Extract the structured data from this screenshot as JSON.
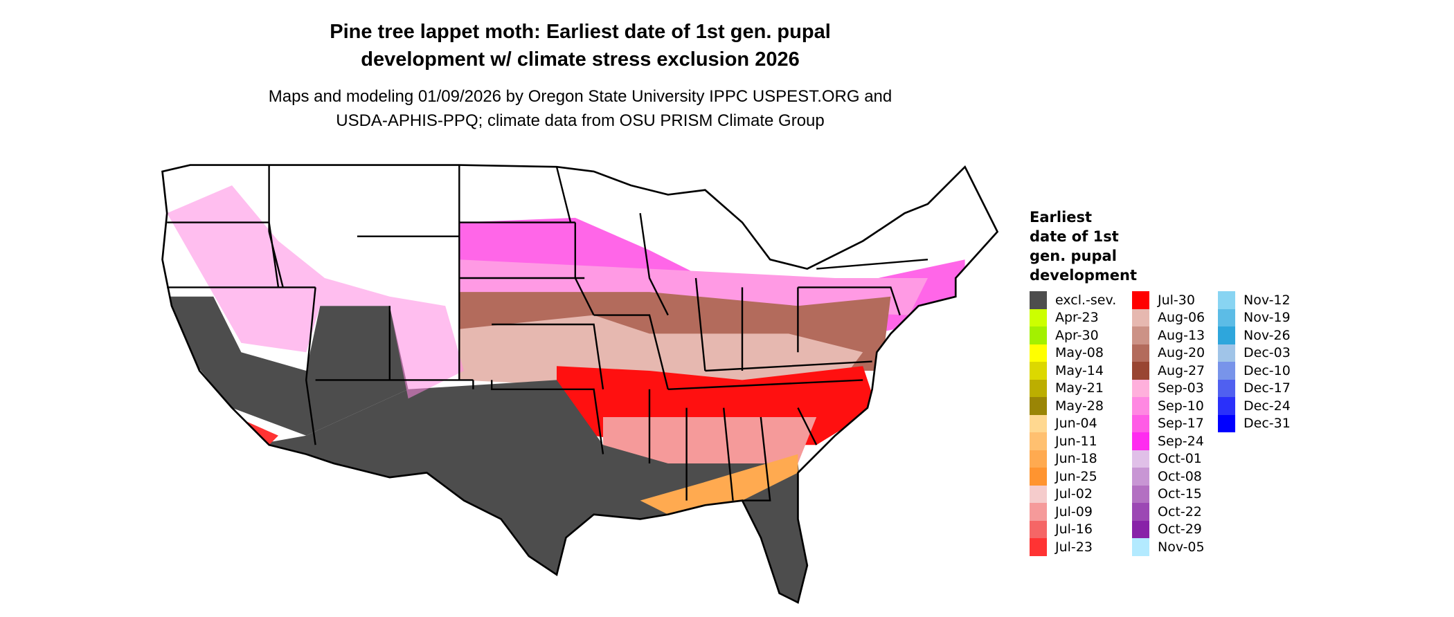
{
  "title_lines": [
    "Pine tree lappet moth: Earliest date of 1st gen. pupal",
    "development w/ climate stress exclusion 2026"
  ],
  "subtitle_lines": [
    "Maps and modeling 01/09/2026 by Oregon State University IPPC USPEST.ORG and",
    "USDA-APHIS-PPQ; climate data from OSU PRISM Climate Group"
  ],
  "legend": {
    "title_lines": [
      "Earliest",
      "date of 1st",
      "gen. pupal",
      "development"
    ],
    "items": [
      {
        "label": "excl.-sev.",
        "color": "#4d4d4d"
      },
      {
        "label": "Apr-23",
        "color": "#ccff00"
      },
      {
        "label": "Apr-30",
        "color": "#a3f000"
      },
      {
        "label": "May-08",
        "color": "#ffff00"
      },
      {
        "label": "May-14",
        "color": "#dcd800"
      },
      {
        "label": "May-21",
        "color": "#bcae00"
      },
      {
        "label": "May-28",
        "color": "#9a8505"
      },
      {
        "label": "Jun-04",
        "color": "#ffd890"
      },
      {
        "label": "Jun-11",
        "color": "#ffc070"
      },
      {
        "label": "Jun-18",
        "color": "#ffaa50"
      },
      {
        "label": "Jun-25",
        "color": "#ff9430"
      },
      {
        "label": "Jul-02",
        "color": "#f5cccc"
      },
      {
        "label": "Jul-09",
        "color": "#f59a9a"
      },
      {
        "label": "Jul-16",
        "color": "#f56666"
      },
      {
        "label": "Jul-23",
        "color": "#ff3333"
      },
      {
        "label": "Jul-30",
        "color": "#ff0000"
      },
      {
        "label": "Aug-06",
        "color": "#e6b8b0"
      },
      {
        "label": "Aug-13",
        "color": "#cc9286"
      },
      {
        "label": "Aug-20",
        "color": "#b36b5c"
      },
      {
        "label": "Aug-27",
        "color": "#994532"
      },
      {
        "label": "Sep-03",
        "color": "#ffb0dc"
      },
      {
        "label": "Sep-10",
        "color": "#ff88e2"
      },
      {
        "label": "Sep-17",
        "color": "#ff5ce6"
      },
      {
        "label": "Sep-24",
        "color": "#ff2cf0"
      },
      {
        "label": "Oct-01",
        "color": "#e0c0e8"
      },
      {
        "label": "Oct-08",
        "color": "#c896d4"
      },
      {
        "label": "Oct-15",
        "color": "#b370c2"
      },
      {
        "label": "Oct-22",
        "color": "#9c48b4"
      },
      {
        "label": "Oct-29",
        "color": "#8822a8"
      },
      {
        "label": "Nov-05",
        "color": "#b3eaff"
      },
      {
        "label": "Nov-12",
        "color": "#88d4f2"
      },
      {
        "label": "Nov-19",
        "color": "#5cbce6"
      },
      {
        "label": "Nov-26",
        "color": "#2ea6dc"
      },
      {
        "label": "Dec-03",
        "color": "#a0c4e8"
      },
      {
        "label": "Dec-10",
        "color": "#7894ea"
      },
      {
        "label": "Dec-17",
        "color": "#5060f0"
      },
      {
        "label": "Dec-24",
        "color": "#2a30fa"
      },
      {
        "label": "Dec-31",
        "color": "#0000ff"
      }
    ]
  }
}
